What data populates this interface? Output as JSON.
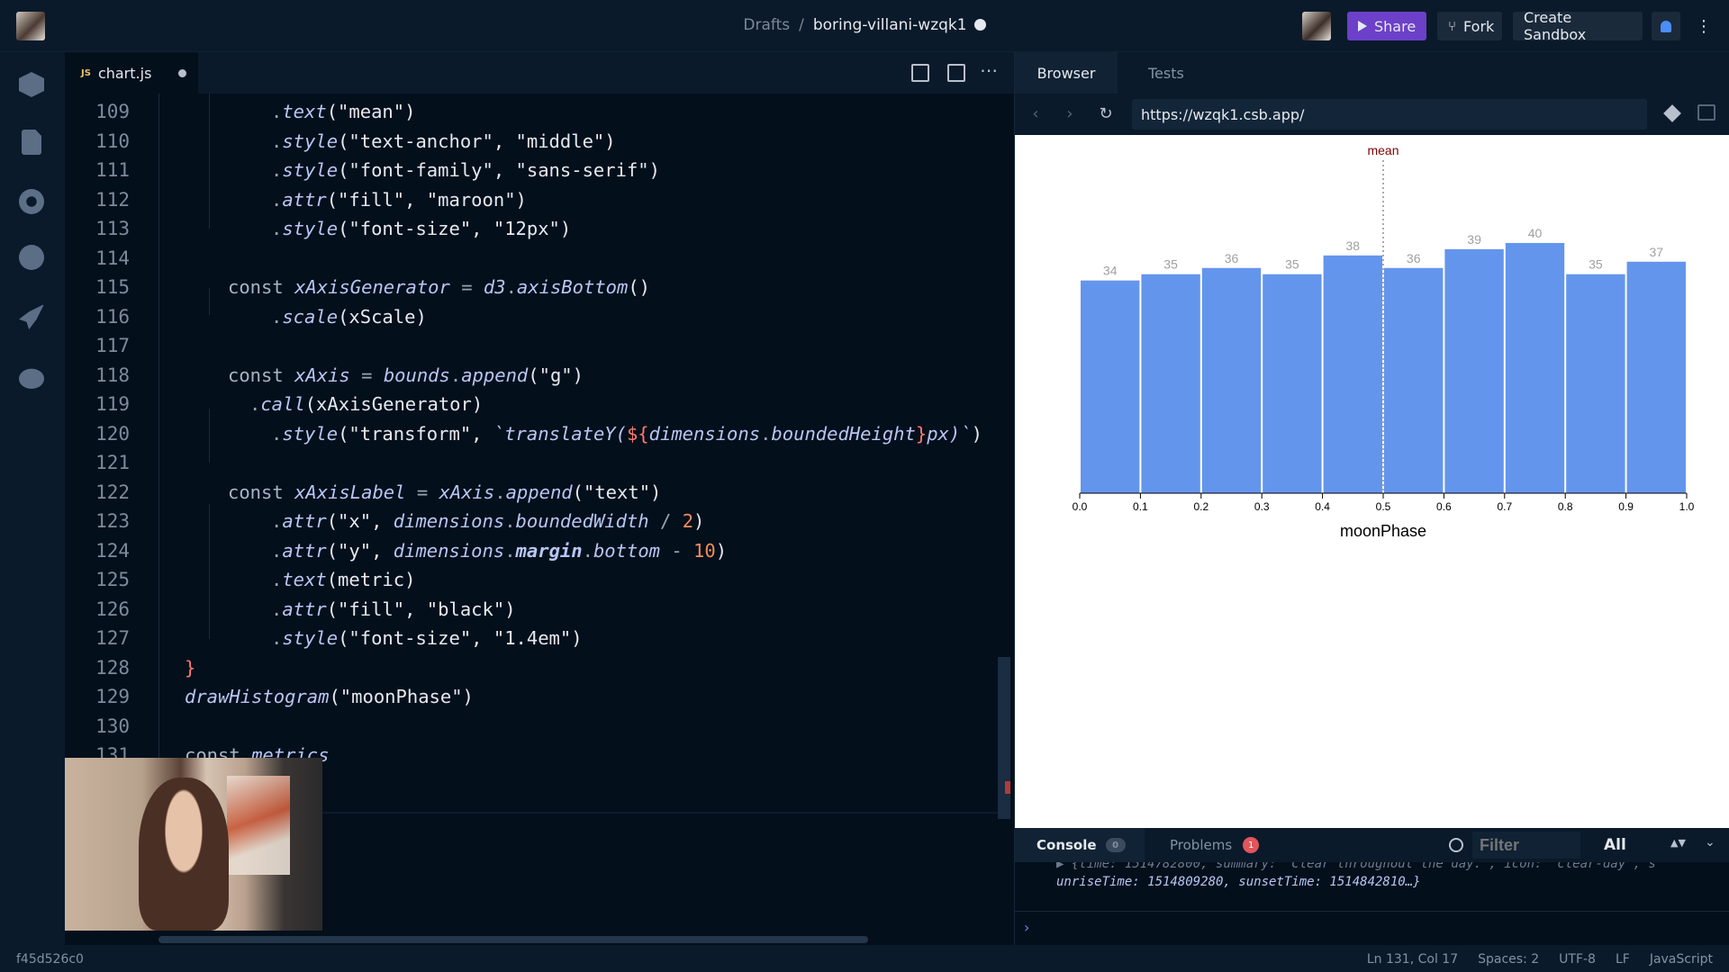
{
  "topbar": {
    "breadcrumb_root": "Drafts",
    "breadcrumb_sep": "/",
    "sandbox_name": "boring-villani-wzqk1",
    "share_label": "Share",
    "fork_label": "Fork",
    "create_label": "Create Sandbox"
  },
  "editor": {
    "tab_label": "chart.js",
    "tab_lang": "JS",
    "lines": [
      {
        "n": "109",
        "indent": 2,
        "html": "<span class='punc'>.</span><span class='it'>text</span>(\"mean\")"
      },
      {
        "n": "110",
        "indent": 2,
        "html": "<span class='punc'>.</span><span class='it'>style</span>(\"text-anchor\", \"middle\")"
      },
      {
        "n": "111",
        "indent": 2,
        "html": "<span class='punc'>.</span><span class='it'>style</span>(\"font-family\", \"sans-serif\")"
      },
      {
        "n": "112",
        "indent": 2,
        "html": "<span class='punc'>.</span><span class='it'>attr</span>(\"fill\", \"maroon\")"
      },
      {
        "n": "113",
        "indent": 2,
        "html": "<span class='punc'>.</span><span class='it'>style</span>(\"font-size\", \"12px\")"
      },
      {
        "n": "114",
        "indent": 0,
        "html": ""
      },
      {
        "n": "115",
        "indent": 1,
        "html": "<span class='kw'>const</span> <span class='it'>xAxisGenerator</span> <span class='punc'>=</span> <span class='it'>d3</span><span class='punc'>.</span><span class='it'>axisBottom</span>()"
      },
      {
        "n": "116",
        "indent": 2,
        "html": "<span class='punc'>.</span><span class='it'>scale</span>(xScale)"
      },
      {
        "n": "117",
        "indent": 0,
        "html": ""
      },
      {
        "n": "118",
        "indent": 1,
        "html": "<span class='kw'>const</span> <span class='it'>xAxis</span> <span class='punc'>=</span> <span class='it'>bounds</span><span class='punc'>.</span><span class='it'>append</span>(\"g\")"
      },
      {
        "n": "119",
        "indent": 1.5,
        "html": "<span class='punc'>.</span><span class='it'>call</span>(xAxisGenerator)"
      },
      {
        "n": "120",
        "indent": 2,
        "html": "<span class='punc'>.</span><span class='it'>style</span>(\"transform\", <span class='it'>`translateY(</span><span class='mar'>${</span><span class='it'>dimensions</span><span class='punc'>.</span><span class='it'>boundedHeight</span><span class='mar'>}</span><span class='it'>px)`</span>)"
      },
      {
        "n": "121",
        "indent": 0,
        "html": ""
      },
      {
        "n": "122",
        "indent": 1,
        "html": "<span class='kw'>const</span> <span class='it'>xAxisLabel</span> <span class='punc'>=</span> <span class='it'>xAxis</span><span class='punc'>.</span><span class='it'>append</span>(\"text\")"
      },
      {
        "n": "123",
        "indent": 2,
        "html": "<span class='punc'>.</span><span class='it'>attr</span>(\"x\", <span class='it'>dimensions</span><span class='punc'>.</span><span class='it'>boundedWidth</span> <span class='punc'>/</span> <span class='num'>2</span>)"
      },
      {
        "n": "124",
        "indent": 2,
        "html": "<span class='punc'>.</span><span class='it'>attr</span>(\"y\", <span class='it'>dimensions</span><span class='punc'>.</span><b><span class='it'>margin</span></b><span class='punc'>.</span><span class='it'>bottom</span> <span class='punc'>-</span> <span class='num'>10</span>)"
      },
      {
        "n": "125",
        "indent": 2,
        "html": "<span class='punc'>.</span><span class='it'>text</span>(metric)"
      },
      {
        "n": "126",
        "indent": 2,
        "html": "<span class='punc'>.</span><span class='it'>attr</span>(\"fill\", \"black\")"
      },
      {
        "n": "127",
        "indent": 2,
        "html": "<span class='punc'>.</span><span class='it'>style</span>(\"font-size\", \"1.4em\")"
      },
      {
        "n": "128",
        "indent": 0,
        "html": "<span class='mar'>}</span>"
      },
      {
        "n": "129",
        "indent": 0,
        "html": "<span class='it'>drawHistogram</span>(\"moonPhase\")"
      },
      {
        "n": "130",
        "indent": 0,
        "html": ""
      },
      {
        "n": "131",
        "indent": 0,
        "html": "<span class='kw'>const</span> <span class='it'>metrics</span> "
      }
    ],
    "cursor_position": "Ln 131, Col 17"
  },
  "browser": {
    "tab_browser": "Browser",
    "tab_tests": "Tests",
    "url": "https://wzqk1.csb.app/"
  },
  "chart_data": {
    "type": "bar",
    "bins": [
      [
        0.0,
        0.1
      ],
      [
        0.1,
        0.2
      ],
      [
        0.2,
        0.3
      ],
      [
        0.3,
        0.4
      ],
      [
        0.4,
        0.5
      ],
      [
        0.5,
        0.6
      ],
      [
        0.6,
        0.7
      ],
      [
        0.7,
        0.8
      ],
      [
        0.8,
        0.9
      ],
      [
        0.9,
        1.0
      ]
    ],
    "values": [
      34,
      35,
      36,
      35,
      38,
      36,
      39,
      40,
      35,
      37
    ],
    "x_ticks": [
      "0.0",
      "0.1",
      "0.2",
      "0.3",
      "0.4",
      "0.5",
      "0.6",
      "0.7",
      "0.8",
      "0.9",
      "1.0"
    ],
    "xlim": [
      0,
      1
    ],
    "xlabel": "moonPhase",
    "mean_label": "mean",
    "mean_value": 0.5,
    "bar_color": "#6495ed",
    "label_color": "#a0a0a0",
    "mean_color": "maroon"
  },
  "console": {
    "tab_console": "Console",
    "console_count": "0",
    "tab_problems": "Problems",
    "problems_count": "1",
    "filter_placeholder": "Filter",
    "level": "All",
    "log_line1": "▶ {time: 1514782800, summary: \"Clear throughout the day.\", icon: \"clear-day\", s",
    "log_line2": "unriseTime: 1514809280, sunsetTime: 1514842810…}"
  },
  "statusbar": {
    "hash": "f45d526c0",
    "position": "Ln 131, Col 17",
    "spaces": "Spaces: 2",
    "encoding": "UTF-8",
    "eol": "LF",
    "language": "JavaScript"
  }
}
